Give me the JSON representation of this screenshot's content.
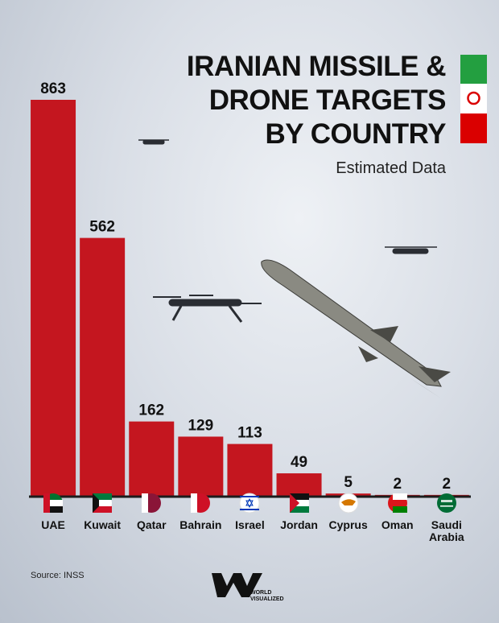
{
  "chart_data": {
    "type": "bar",
    "title": "IRANIAN MISSILE &\nDRONE TARGETS\nBY COUNTRY",
    "subtitle": "Estimated Data",
    "categories": [
      "UAE",
      "Kuwait",
      "Qatar",
      "Bahrain",
      "Israel",
      "Jordan",
      "Cyprus",
      "Oman",
      "Saudi Arabia"
    ],
    "values": [
      863,
      562,
      162,
      129,
      113,
      49,
      5,
      2,
      2
    ],
    "color": "#c4161f",
    "source": "Source: INSS"
  },
  "logo": "WORLD\nVISUALIZED"
}
